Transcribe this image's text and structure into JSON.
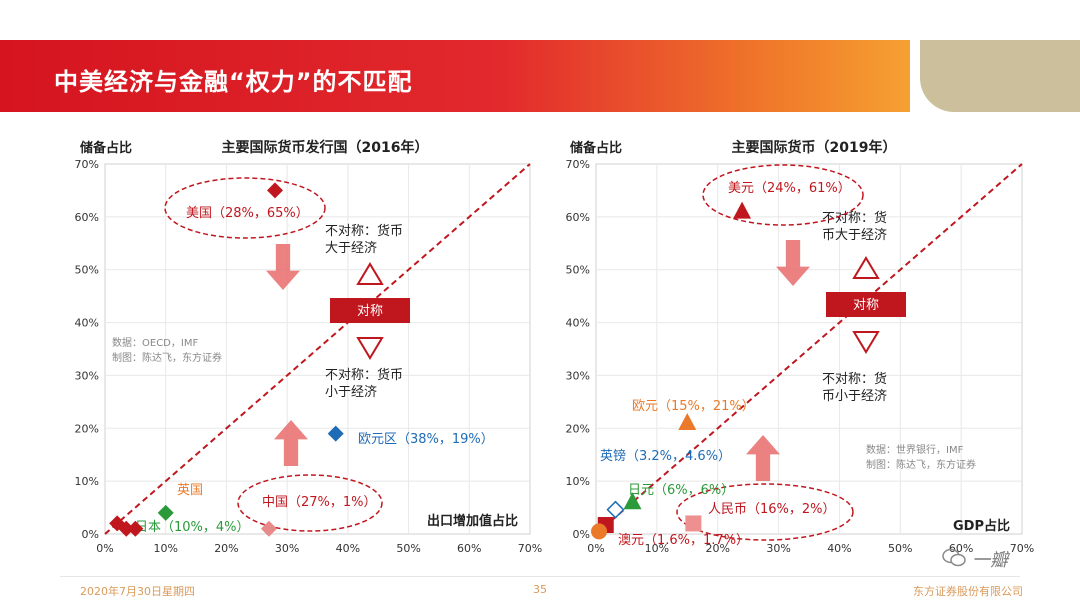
{
  "header": {
    "title": "中美经济与金融“权力”的不匹配"
  },
  "chart_data": [
    {
      "type": "scatter",
      "title": "主要国际货币发行国（2016年）",
      "ylabel": "储备占比",
      "xlabel": "出口增加值占比",
      "xlim": [
        0,
        70
      ],
      "ylim": [
        0,
        70
      ],
      "xticks": [
        "0%",
        "10%",
        "20%",
        "30%",
        "40%",
        "50%",
        "60%",
        "70%"
      ],
      "yticks": [
        "0%",
        "10%",
        "20%",
        "30%",
        "40%",
        "50%",
        "60%",
        "70%"
      ],
      "points": [
        {
          "x": 28,
          "y": 65,
          "color": "#c0171f",
          "shape": "diamond",
          "label": "美国（28%，65%）"
        },
        {
          "x": 38,
          "y": 19,
          "color": "#1f6bb5",
          "shape": "diamond",
          "label": "欧元区（38%，19%）"
        },
        {
          "x": 27,
          "y": 1,
          "color": "#e88a8a",
          "shape": "diamond",
          "label": "中国（27%，1%）"
        },
        {
          "x": 10,
          "y": 4,
          "color": "#2a9a3a",
          "shape": "diamond",
          "label": "日本（10%，4%）"
        },
        {
          "x": 2,
          "y": 2,
          "color": "#c0171f",
          "shape": "diamond",
          "label": "英国"
        },
        {
          "x": 3.5,
          "y": 1,
          "color": "#c0171f",
          "shape": "diamond",
          "label": ""
        },
        {
          "x": 5,
          "y": 1,
          "color": "#c0171f",
          "shape": "diamond",
          "label": ""
        }
      ],
      "annotations": {
        "symmetric": "对称",
        "above": "不对称：货币大于经济",
        "below": "不对称：货币小于经济",
        "source": "数据：OECD，IMF",
        "author": "制图：陈达飞，东方证券"
      }
    },
    {
      "type": "scatter",
      "title": "主要国际货币（2019年）",
      "ylabel": "储备占比",
      "xlabel": "GDP占比",
      "xlim": [
        0,
        70
      ],
      "ylim": [
        0,
        70
      ],
      "xticks": [
        "0%",
        "10%",
        "20%",
        "30%",
        "40%",
        "50%",
        "60%",
        "70%"
      ],
      "yticks": [
        "0%",
        "10%",
        "20%",
        "30%",
        "40%",
        "50%",
        "60%",
        "70%"
      ],
      "points": [
        {
          "x": 24,
          "y": 61,
          "color": "#c0171f",
          "shape": "triangle",
          "label": "美元（24%，61%）"
        },
        {
          "x": 15,
          "y": 21,
          "color": "#ea7a2a",
          "shape": "triangle",
          "label": "欧元（15%，21%）"
        },
        {
          "x": 3.2,
          "y": 4.6,
          "color": "#1f6bb5",
          "shape": "diamond-open",
          "label": "英镑（3.2%，4.6%）"
        },
        {
          "x": 6,
          "y": 6,
          "color": "#2a9a3a",
          "shape": "triangle",
          "label": "日元（6%，6%）"
        },
        {
          "x": 16,
          "y": 2,
          "color": "#ef9090",
          "shape": "square",
          "label": "人民币（16%，2%）"
        },
        {
          "x": 1.6,
          "y": 1.7,
          "color": "#c0171f",
          "shape": "square",
          "label": "澳元（1.6%，1.7%）"
        },
        {
          "x": 0.5,
          "y": 0.5,
          "color": "#ea7a2a",
          "shape": "circle",
          "label": ""
        }
      ],
      "annotations": {
        "symmetric": "对称",
        "above": "不对称：货币大于经济",
        "below": "不对称：货币小于经济",
        "source": "数据：世界银行，IMF",
        "author": "制图：陈达飞，东方证券"
      }
    }
  ],
  "footer": {
    "date": "2020年7月30日星期四",
    "page": "35",
    "company": "东方证券股份有限公司"
  },
  "watermark": {
    "text": "一瓣"
  }
}
